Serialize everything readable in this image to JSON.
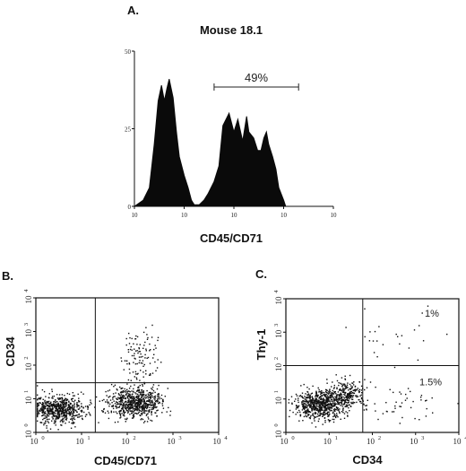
{
  "chart_data": [
    {
      "type": "area",
      "panel_label": "A.",
      "title": "Mouse 18.1",
      "xlabel": "CD45/CD71",
      "ylabel": "",
      "x_scale": "log",
      "xlim": [
        1,
        10000
      ],
      "ylim": [
        0,
        50
      ],
      "x_ticks": [
        "10",
        "10",
        "10",
        "10",
        "10"
      ],
      "y_ticks": [
        "50",
        "25",
        "0"
      ],
      "gate": {
        "x_range": [
          40,
          2000
        ],
        "label": "49%"
      },
      "series": [
        {
          "x": [
            1,
            1.5,
            2,
            2.5,
            3,
            3.5,
            4,
            4.5,
            5,
            6,
            7,
            8,
            10,
            12,
            14,
            16,
            20,
            25,
            30,
            40,
            50,
            60,
            80,
            100,
            120,
            150,
            180,
            200,
            250,
            300,
            350,
            400,
            450,
            500,
            600,
            700,
            800,
            1000,
            1100
          ],
          "y": [
            0,
            2,
            6,
            20,
            34,
            39,
            34,
            38,
            41,
            35,
            24,
            16,
            10,
            6,
            2,
            0.5,
            0.5,
            2,
            4,
            8,
            13,
            26,
            30,
            24,
            28,
            21,
            29,
            24,
            22,
            18,
            18,
            22,
            24,
            20,
            16,
            12,
            6,
            2,
            0
          ]
        }
      ],
      "grid": false
    },
    {
      "type": "scatter",
      "panel_label": "B.",
      "xlabel": "CD45/CD71",
      "ylabel": "CD34",
      "x_scale": "log",
      "y_scale": "log",
      "xlim": [
        1,
        10000
      ],
      "ylim": [
        1,
        10000
      ],
      "x_ticks": [
        "10",
        "10",
        "10",
        "10",
        "10"
      ],
      "y_ticks": [
        "10",
        "10",
        "10",
        "10",
        "10"
      ],
      "quadrant_lines": {
        "x": 20,
        "y": 30
      },
      "clusters": [
        {
          "center": [
            3,
            5
          ],
          "spread": [
            0.28,
            0.2
          ],
          "n": 650
        },
        {
          "center": [
            150,
            8
          ],
          "spread": [
            0.3,
            0.22
          ],
          "n": 700
        },
        {
          "center": [
            180,
            200
          ],
          "spread": [
            0.2,
            0.45
          ],
          "n": 110
        }
      ]
    },
    {
      "type": "scatter",
      "panel_label": "C.",
      "xlabel": "CD34",
      "ylabel": "Thy-1",
      "x_scale": "log",
      "y_scale": "log",
      "xlim": [
        1,
        10000
      ],
      "ylim": [
        1,
        10000
      ],
      "x_ticks": [
        "10",
        "10",
        "10",
        "10",
        "10"
      ],
      "y_ticks": [
        "10",
        "10",
        "10",
        "10",
        "10"
      ],
      "quadrant_lines": {
        "x": 60,
        "y": 100
      },
      "quadrant_percents": {
        "upper_right": "1%",
        "lower_right": "1.5%"
      },
      "clusters": [
        {
          "center": [
            6,
            7
          ],
          "spread": [
            0.3,
            0.2
          ],
          "n": 700
        },
        {
          "center": [
            25,
            15
          ],
          "spread": [
            0.22,
            0.2
          ],
          "n": 250
        },
        {
          "center": [
            400,
            8
          ],
          "spread": [
            0.5,
            0.25
          ],
          "n": 45
        },
        {
          "center": [
            300,
            600
          ],
          "spread": [
            0.6,
            0.5
          ],
          "n": 25
        }
      ]
    }
  ]
}
